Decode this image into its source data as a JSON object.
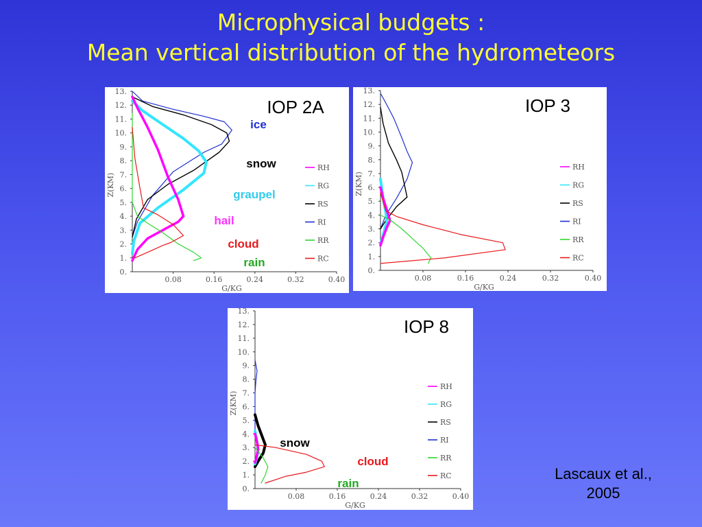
{
  "title": {
    "line1": "Microphysical budgets :",
    "line2": "Mean vertical distribution of the hydrometeors"
  },
  "citation": {
    "line1": "Lascaux et al.,",
    "line2": "2005"
  },
  "colors": {
    "background": "#4b55ee",
    "title": "#ffff33",
    "RH": "#ff00ff",
    "RG": "#33e6ff",
    "RS": "#000000",
    "RI": "#1f2fd0",
    "RR": "#2fd62f",
    "RC": "#e8181c"
  },
  "chart_data": [
    {
      "id": "iop2a",
      "type": "line",
      "title": "IOP 2A",
      "xlabel": "G/KG",
      "ylabel": "Z(KM)",
      "xlim": [
        0,
        0.4
      ],
      "ylim": [
        0,
        13
      ],
      "x_ticks": [
        "0.08",
        "0.16",
        "0.24",
        "0.32",
        "0.40"
      ],
      "y_ticks": [
        "0.",
        "1.",
        "2.",
        "3.",
        "4.",
        "5.",
        "6.",
        "7.",
        "8.",
        "9.",
        "10.",
        "11.",
        "12.",
        "13."
      ],
      "legend": [
        "RH",
        "RG",
        "RS",
        "RI",
        "RR",
        "RC"
      ],
      "annotations": [
        {
          "text": "ice",
          "series": "RI"
        },
        {
          "text": "snow",
          "series": "RS"
        },
        {
          "text": "graupel",
          "series": "RG"
        },
        {
          "text": "hail",
          "series": "RH"
        },
        {
          "text": "cloud",
          "series": "RC"
        },
        {
          "text": "rain",
          "series": "RR"
        }
      ],
      "series": [
        {
          "name": "RI",
          "points": [
            [
              0.0,
              13.0
            ],
            [
              0.02,
              12.3
            ],
            [
              0.08,
              11.7
            ],
            [
              0.14,
              11.2
            ],
            [
              0.18,
              10.8
            ],
            [
              0.195,
              10.2
            ],
            [
              0.175,
              9.2
            ],
            [
              0.14,
              8.6
            ],
            [
              0.08,
              7.2
            ],
            [
              0.04,
              5.5
            ],
            [
              0.01,
              3.6
            ],
            [
              0.0,
              2.5
            ]
          ]
        },
        {
          "name": "RS",
          "points": [
            [
              0.0,
              12.6
            ],
            [
              0.04,
              11.9
            ],
            [
              0.1,
              11.3
            ],
            [
              0.155,
              10.6
            ],
            [
              0.185,
              10.0
            ],
            [
              0.19,
              9.4
            ],
            [
              0.17,
              8.6
            ],
            [
              0.12,
              7.3
            ],
            [
              0.07,
              6.3
            ],
            [
              0.03,
              5.2
            ],
            [
              0.008,
              3.8
            ],
            [
              0.0,
              2.5
            ]
          ]
        },
        {
          "name": "RG",
          "points": [
            [
              0.0,
              12.3
            ],
            [
              0.02,
              11.6
            ],
            [
              0.06,
              10.6
            ],
            [
              0.1,
              9.6
            ],
            [
              0.13,
              8.7
            ],
            [
              0.145,
              7.9
            ],
            [
              0.14,
              7.1
            ],
            [
              0.1,
              5.9
            ],
            [
              0.05,
              4.6
            ],
            [
              0.015,
              3.5
            ],
            [
              0.003,
              2.2
            ],
            [
              0.0,
              1.3
            ]
          ]
        },
        {
          "name": "RH",
          "points": [
            [
              0.0,
              12.6
            ],
            [
              0.01,
              11.8
            ],
            [
              0.03,
              10.4
            ],
            [
              0.05,
              8.8
            ],
            [
              0.07,
              6.8
            ],
            [
              0.09,
              5.2
            ],
            [
              0.1,
              4.0
            ],
            [
              0.09,
              3.6
            ],
            [
              0.06,
              3.0
            ],
            [
              0.03,
              2.4
            ],
            [
              0.01,
              1.6
            ],
            [
              0.0,
              0.8
            ]
          ]
        },
        {
          "name": "RR",
          "points": [
            [
              0.0,
              11.4
            ],
            [
              0.0,
              8.0
            ],
            [
              0.0,
              5.0
            ],
            [
              0.01,
              4.0
            ],
            [
              0.03,
              3.5
            ],
            [
              0.06,
              2.8
            ],
            [
              0.09,
              2.0
            ],
            [
              0.12,
              1.4
            ],
            [
              0.135,
              1.0
            ],
            [
              0.12,
              0.8
            ]
          ]
        },
        {
          "name": "RC",
          "points": [
            [
              0.0,
              10.4
            ],
            [
              0.005,
              8.2
            ],
            [
              0.015,
              6.0
            ],
            [
              0.022,
              4.6
            ],
            [
              0.05,
              4.1
            ],
            [
              0.08,
              3.4
            ],
            [
              0.1,
              2.6
            ],
            [
              0.075,
              2.1
            ],
            [
              0.06,
              1.9
            ],
            [
              0.03,
              1.4
            ],
            [
              0.005,
              1.0
            ]
          ]
        }
      ]
    },
    {
      "id": "iop3",
      "type": "line",
      "title": "IOP 3",
      "xlabel": "G/KG",
      "ylabel": "Z(KM)",
      "xlim": [
        0,
        0.4
      ],
      "ylim": [
        0,
        13
      ],
      "x_ticks": [
        "0.08",
        "0.16",
        "0.24",
        "0.32",
        "0.40"
      ],
      "y_ticks": [
        "0.",
        "1.",
        "2.",
        "3.",
        "4.",
        "5.",
        "6.",
        "7.",
        "8.",
        "9.",
        "10.",
        "11.",
        "12.",
        "13."
      ],
      "legend": [
        "RH",
        "RG",
        "RS",
        "RI",
        "RR",
        "RC"
      ],
      "annotations": [],
      "series": [
        {
          "name": "RI",
          "points": [
            [
              0.0,
              12.8
            ],
            [
              0.01,
              12.1
            ],
            [
              0.025,
              11.0
            ],
            [
              0.04,
              9.6
            ],
            [
              0.05,
              8.6
            ],
            [
              0.06,
              7.8
            ],
            [
              0.05,
              6.6
            ],
            [
              0.03,
              5.2
            ],
            [
              0.01,
              4.0
            ],
            [
              0.0,
              3.0
            ]
          ]
        },
        {
          "name": "RS",
          "points": [
            [
              0.0,
              11.8
            ],
            [
              0.005,
              10.6
            ],
            [
              0.015,
              9.2
            ],
            [
              0.03,
              8.0
            ],
            [
              0.04,
              7.1
            ],
            [
              0.045,
              6.2
            ],
            [
              0.05,
              5.3
            ],
            [
              0.03,
              4.6
            ],
            [
              0.01,
              3.6
            ],
            [
              0.0,
              3.0
            ]
          ]
        },
        {
          "name": "RG",
          "points": [
            [
              0.0,
              6.6
            ],
            [
              0.003,
              5.8
            ],
            [
              0.006,
              5.0
            ],
            [
              0.01,
              4.2
            ],
            [
              0.012,
              3.5
            ],
            [
              0.008,
              3.0
            ],
            [
              0.004,
              2.4
            ],
            [
              0.0,
              1.9
            ]
          ]
        },
        {
          "name": "RH",
          "points": [
            [
              0.0,
              6.0
            ],
            [
              0.005,
              5.2
            ],
            [
              0.01,
              4.6
            ],
            [
              0.015,
              4.0
            ],
            [
              0.018,
              3.6
            ],
            [
              0.012,
              3.1
            ],
            [
              0.006,
              2.5
            ],
            [
              0.0,
              1.8
            ]
          ]
        },
        {
          "name": "RR",
          "points": [
            [
              0.0,
              4.0
            ],
            [
              0.02,
              3.6
            ],
            [
              0.04,
              3.0
            ],
            [
              0.06,
              2.3
            ],
            [
              0.08,
              1.6
            ],
            [
              0.095,
              0.9
            ],
            [
              0.09,
              0.5
            ]
          ]
        },
        {
          "name": "RC",
          "points": [
            [
              0.0,
              5.6
            ],
            [
              0.01,
              4.3
            ],
            [
              0.03,
              3.9
            ],
            [
              0.08,
              3.3
            ],
            [
              0.15,
              2.6
            ],
            [
              0.23,
              2.0
            ],
            [
              0.235,
              1.5
            ],
            [
              0.12,
              0.9
            ],
            [
              0.06,
              0.7
            ],
            [
              0.0,
              0.5
            ]
          ]
        }
      ]
    },
    {
      "id": "iop8",
      "type": "line",
      "title": "IOP 8",
      "xlabel": "G/KG",
      "ylabel": "Z(KM)",
      "xlim": [
        0,
        0.4
      ],
      "ylim": [
        0,
        13
      ],
      "x_ticks": [
        "0.08",
        "0.16",
        "0.24",
        "0.32",
        "0.40"
      ],
      "y_ticks": [
        "0.",
        "1.",
        "2.",
        "3.",
        "4.",
        "5.",
        "6.",
        "7.",
        "8.",
        "9.",
        "10.",
        "11.",
        "12.",
        "13."
      ],
      "legend": [
        "RH",
        "RG",
        "RS",
        "RI",
        "RR",
        "RC"
      ],
      "annotations": [
        {
          "text": "snow",
          "series": "RS"
        },
        {
          "text": "cloud",
          "series": "RC"
        },
        {
          "text": "rain",
          "series": "RR"
        }
      ],
      "series": [
        {
          "name": "RI",
          "points": [
            [
              0.0,
              9.4
            ],
            [
              0.004,
              8.6
            ],
            [
              0.002,
              8.0
            ],
            [
              0.0,
              7.0
            ],
            [
              0.0,
              5.6
            ],
            [
              0.0,
              4.0
            ]
          ]
        },
        {
          "name": "RS",
          "points": [
            [
              0.0,
              5.4
            ],
            [
              0.006,
              4.6
            ],
            [
              0.014,
              3.8
            ],
            [
              0.02,
              3.2
            ],
            [
              0.016,
              2.6
            ],
            [
              0.006,
              2.0
            ],
            [
              0.0,
              1.6
            ]
          ]
        },
        {
          "name": "RG",
          "points": [
            [
              0.0,
              4.2
            ],
            [
              0.004,
              3.4
            ],
            [
              0.006,
              2.8
            ],
            [
              0.003,
              2.2
            ],
            [
              0.0,
              1.8
            ]
          ]
        },
        {
          "name": "RH",
          "points": [
            [
              0.0,
              4.0
            ],
            [
              0.004,
              3.4
            ],
            [
              0.006,
              2.9
            ],
            [
              0.003,
              2.3
            ],
            [
              0.0,
              1.9
            ]
          ]
        },
        {
          "name": "RR",
          "points": [
            [
              0.0,
              3.0
            ],
            [
              0.015,
              2.3
            ],
            [
              0.025,
              1.6
            ],
            [
              0.02,
              1.0
            ],
            [
              0.012,
              0.4
            ]
          ]
        },
        {
          "name": "RC",
          "points": [
            [
              0.0,
              3.2
            ],
            [
              0.04,
              3.0
            ],
            [
              0.1,
              2.5
            ],
            [
              0.13,
              2.0
            ],
            [
              0.135,
              1.6
            ],
            [
              0.1,
              1.2
            ],
            [
              0.06,
              0.9
            ],
            [
              0.02,
              0.4
            ]
          ]
        }
      ]
    }
  ]
}
